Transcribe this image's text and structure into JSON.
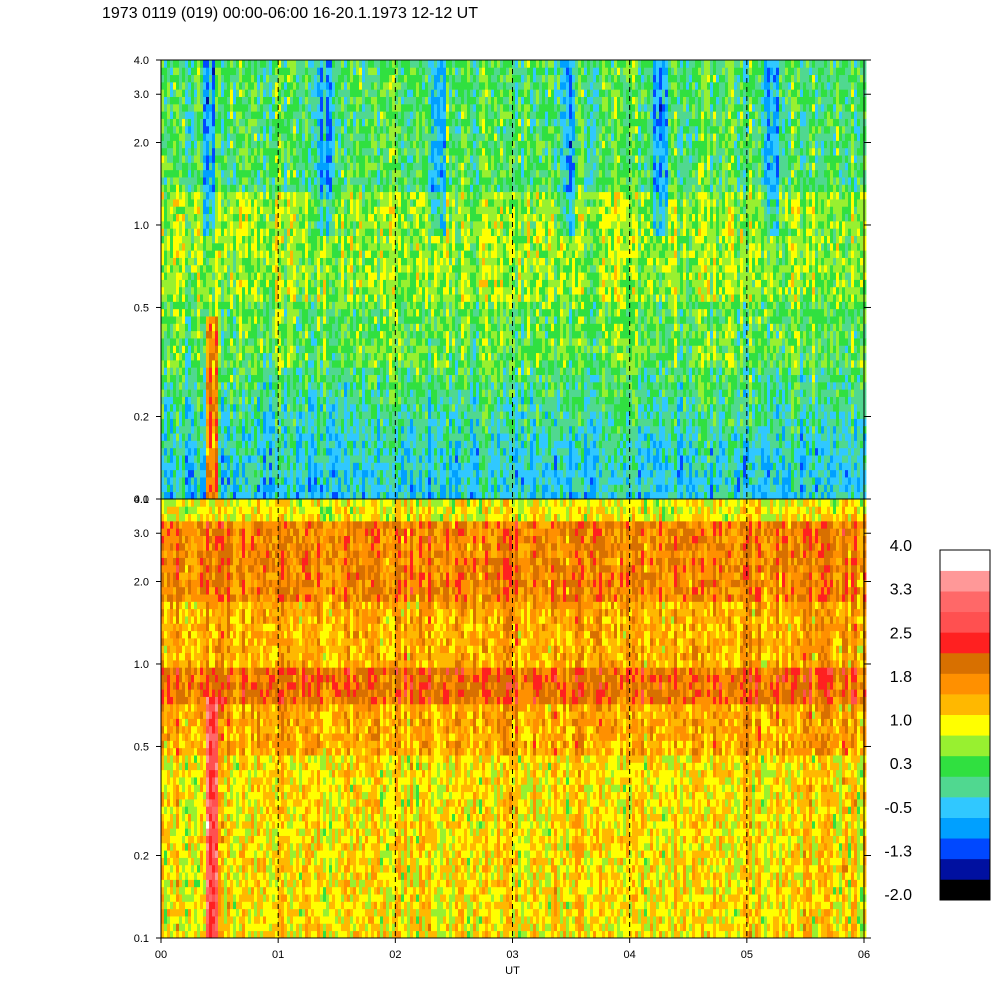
{
  "title": "1973 0119 (019) 00:00-06:00 16-20.1.1973  12-12 UT",
  "chart_data": [
    {
      "type": "heatmap",
      "panel": "upper",
      "x_ticks": [
        "00",
        "01",
        "02",
        "03",
        "04",
        "05",
        "06"
      ],
      "xlim": [
        0,
        6
      ],
      "y_scale": "log",
      "ylim": [
        0.1,
        4.0
      ],
      "y_ticks": [
        {
          "value": 0.1,
          "label": "0.1"
        },
        {
          "value": 0.2,
          "label": "0.2"
        },
        {
          "value": 0.5,
          "label": "0.5"
        },
        {
          "value": 1.0,
          "label": "1.0"
        },
        {
          "value": 2.0,
          "label": "2.0"
        },
        {
          "value": 3.0,
          "label": "3.0"
        },
        {
          "value": 4.0,
          "label": "4.0"
        }
      ],
      "hour_gridlines": "dashed"
    },
    {
      "type": "heatmap",
      "panel": "lower",
      "x_ticks": [
        "00",
        "01",
        "02",
        "03",
        "04",
        "05",
        "06"
      ],
      "xlim": [
        0,
        6
      ],
      "xlabel": "UT",
      "y_scale": "log",
      "ylim": [
        0.1,
        4.0
      ],
      "y_ticks": [
        {
          "value": 0.1,
          "label": "0.1"
        },
        {
          "value": 0.2,
          "label": "0.2"
        },
        {
          "value": 0.5,
          "label": "0.5"
        },
        {
          "value": 1.0,
          "label": "1.0"
        },
        {
          "value": 2.0,
          "label": "2.0"
        },
        {
          "value": 3.0,
          "label": "3.0"
        },
        {
          "value": 4.0,
          "label": "4.0"
        }
      ],
      "hour_gridlines": "dashed"
    }
  ],
  "colorbar": {
    "range": [
      -2.0,
      4.0
    ],
    "colors": [
      "#000000",
      "#0010a0",
      "#0048ff",
      "#00a0ff",
      "#30c8ff",
      "#50d890",
      "#30e040",
      "#98f030",
      "#ffff00",
      "#ffb800",
      "#ff9000",
      "#d87000",
      "#ff2020",
      "#ff5050",
      "#ff6868",
      "#ff9898",
      "#ffffff"
    ],
    "labels": [
      "4.0",
      "3.3",
      "2.5",
      "1.8",
      "1.0",
      "0.3",
      "-0.5",
      "-1.3",
      "-2.0"
    ]
  }
}
